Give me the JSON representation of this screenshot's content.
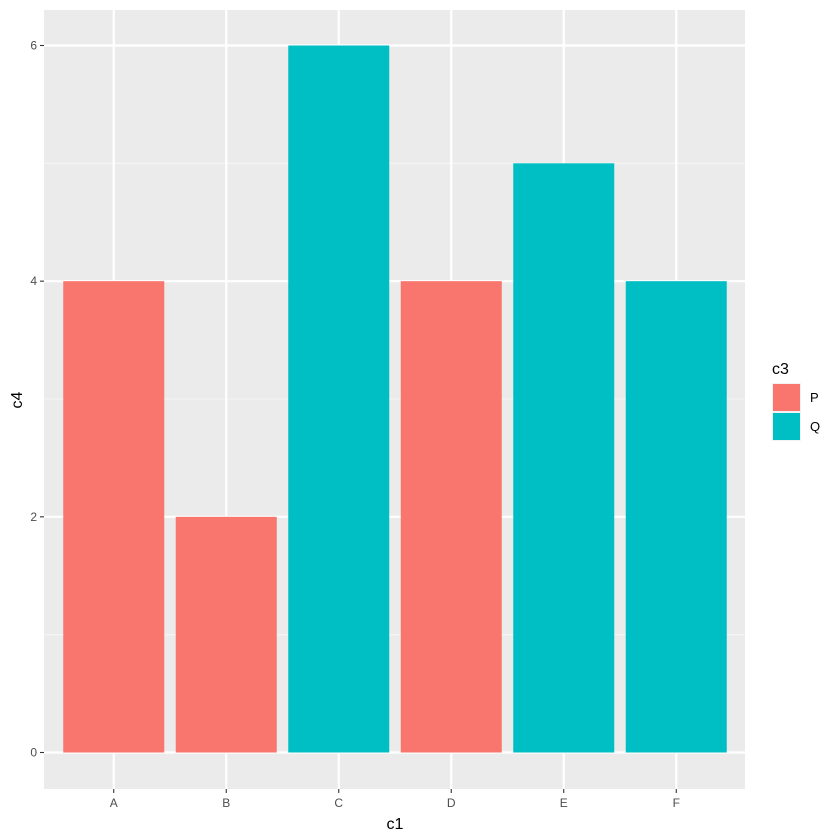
{
  "chart_data": {
    "type": "bar",
    "categories": [
      "A",
      "B",
      "C",
      "D",
      "E",
      "F"
    ],
    "values": [
      4,
      2,
      6,
      4,
      5,
      4
    ],
    "groups": [
      "P",
      "P",
      "Q",
      "P",
      "Q",
      "Q"
    ],
    "title": "",
    "xlabel": "c1",
    "ylabel": "c4",
    "ylim": [
      0,
      6
    ],
    "yticks": [
      0,
      2,
      4,
      6
    ],
    "grid": true,
    "legend": {
      "title": "c3",
      "position": "right",
      "entries": [
        {
          "label": "P",
          "color": "#F8766D"
        },
        {
          "label": "Q",
          "color": "#00BFC4"
        }
      ]
    }
  },
  "colors": {
    "panel_background": "#EBEBEB",
    "grid_major": "#FFFFFF",
    "grid_minor": "#F5F5F5",
    "P": "#F8766D",
    "Q": "#00BFC4"
  }
}
